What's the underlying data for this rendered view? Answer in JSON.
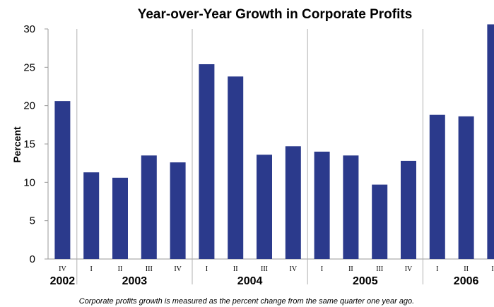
{
  "chart_data": {
    "type": "bar",
    "title": "Year-over-Year Growth in Corporate Profits",
    "xlabel": "",
    "ylabel": "Percent",
    "ylim": [
      0,
      30
    ],
    "yticks": [
      0,
      5,
      10,
      15,
      20,
      25,
      30
    ],
    "grid": "vertical separators between years",
    "bar_color": "#2b3a8c",
    "categories": [
      "IV",
      "I",
      "II",
      "III",
      "IV",
      "I",
      "II",
      "III",
      "IV",
      "I",
      "II",
      "III",
      "IV",
      "I",
      "II",
      "III"
    ],
    "values": [
      20.6,
      11.3,
      10.6,
      13.5,
      12.6,
      25.4,
      23.8,
      13.6,
      14.7,
      14.0,
      13.5,
      9.7,
      12.8,
      18.8,
      18.6,
      30.6
    ],
    "years": [
      {
        "label": "2002",
        "start": 0,
        "end": 0
      },
      {
        "label": "2003",
        "start": 1,
        "end": 4
      },
      {
        "label": "2004",
        "start": 5,
        "end": 8
      },
      {
        "label": "2005",
        "start": 9,
        "end": 12
      },
      {
        "label": "2006",
        "start": 13,
        "end": 15
      }
    ],
    "footnote": "Corporate profits growth is measured as the percent change from the same quarter one year ago."
  }
}
